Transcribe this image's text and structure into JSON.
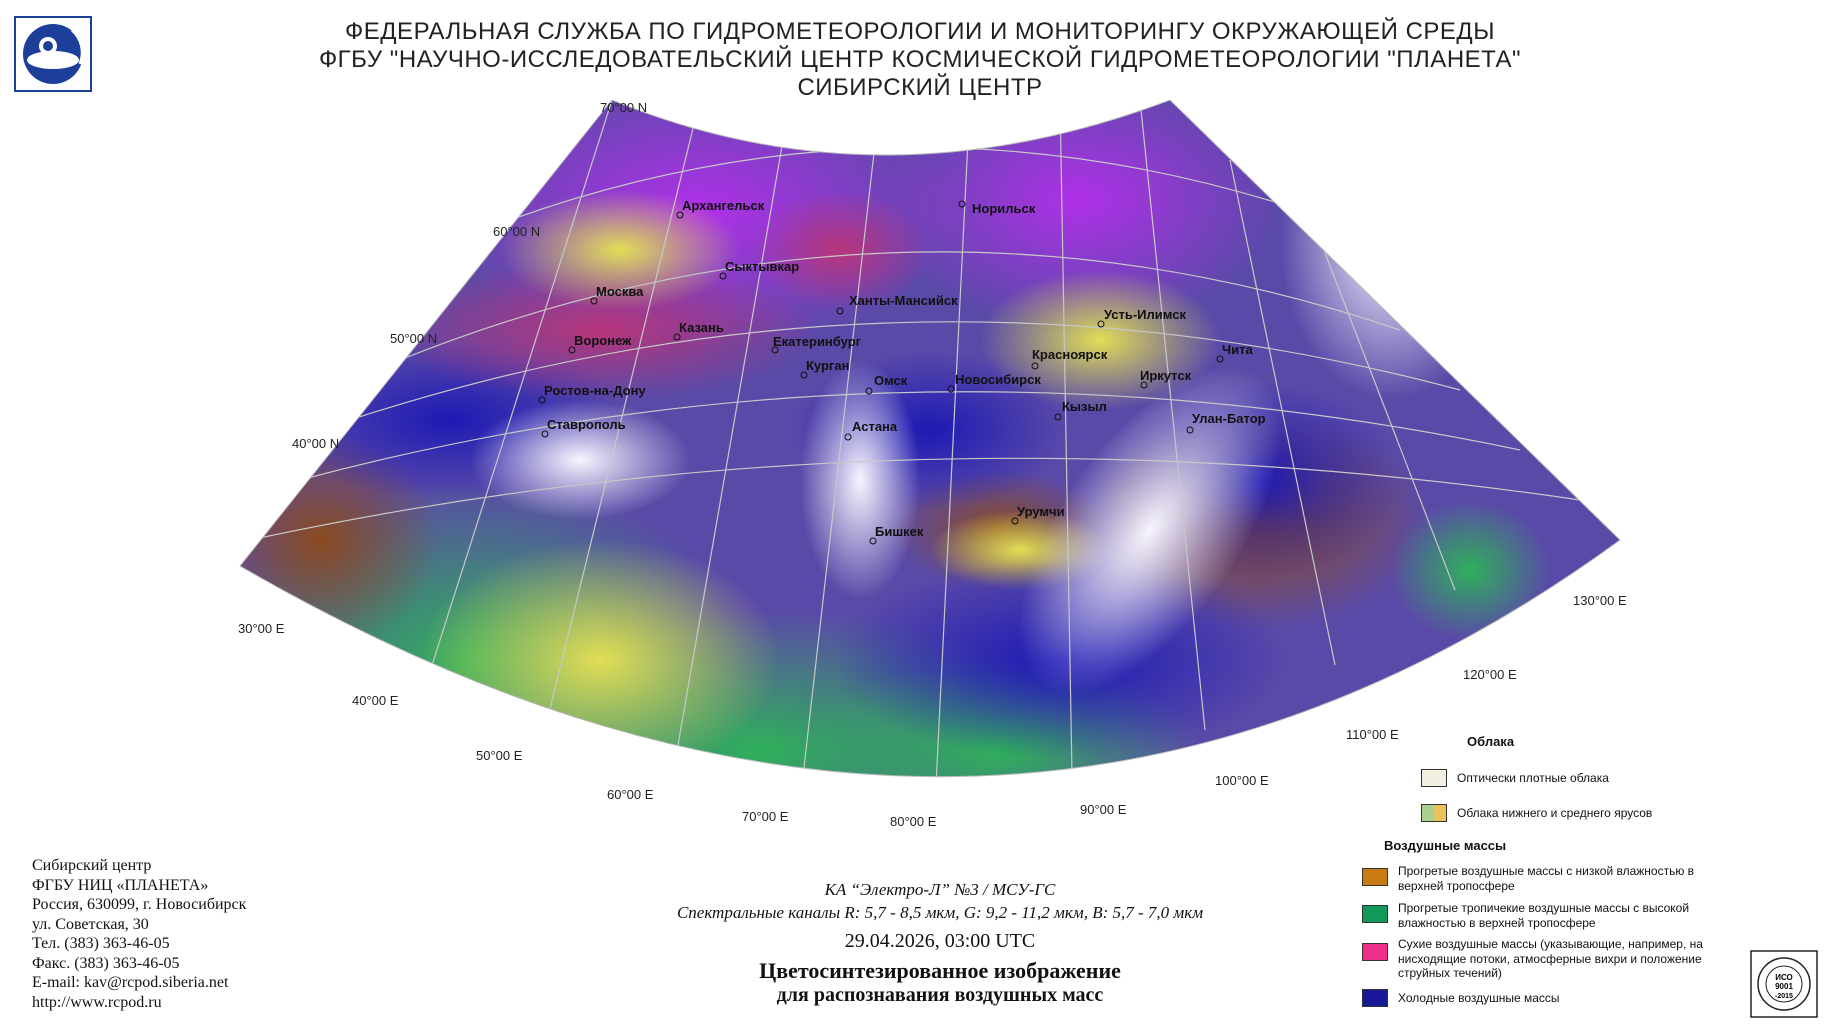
{
  "header": {
    "line1": "ФЕДЕРАЛЬНАЯ СЛУЖБА ПО ГИДРОМЕТЕОРОЛОГИИ И МОНИТОРИНГУ ОКРУЖАЮЩЕЙ СРЕДЫ",
    "line2": "ФГБУ \"НАУЧНО-ИССЛЕДОВАТЕЛЬСКИЙ ЦЕНТР КОСМИЧЕСКОЙ ГИДРОМЕТЕОРОЛОГИИ \"ПЛАНЕТА\"",
    "line3": "СИБИРСКИЙ ЦЕНТР"
  },
  "map": {
    "lat_labels": [
      "70°00 N",
      "60°00 N",
      "50°00 N",
      "40°00 N"
    ],
    "lon_labels": [
      "30°00 E",
      "40°00 E",
      "50°00 E",
      "60°00 E",
      "70°00 E",
      "80°00 E",
      "90°00 E",
      "100°00 E",
      "110°00 E",
      "120°00 E",
      "130°00 E"
    ],
    "cities": [
      "Архангельск",
      "Норильск",
      "Сыктывкар",
      "Москва",
      "Ханты-Мансийск",
      "Усть-Илимск",
      "Казань",
      "Воронеж",
      "Екатеринбург",
      "Красноярск",
      "Чита",
      "Курган",
      "Омск",
      "Новосибирск",
      "Иркутск",
      "Ростов-на-Дону",
      "Кызыл",
      "Улан-Батор",
      "Ставрополь",
      "Астана",
      "Урумчи",
      "Бишкек"
    ]
  },
  "address": {
    "lines": [
      "Сибирский центр",
      "ФГБУ НИЦ «ПЛАНЕТА»",
      "Россия, 630099, г. Новосибирск",
      "ул. Советская, 30",
      "Тел. (383) 363-46-05",
      "Факс. (383) 363-46-05",
      "E-mail: kav@rcpod.siberia.net",
      "http://www.rcpod.ru"
    ]
  },
  "caption": {
    "satellite": "КА “Электро-Л” №3 / МСУ-ГС",
    "channels": "Спектральные каналы R: 5,7 - 8,5 мкм, G: 9,2 - 11,2 мкм, B: 5,7 - 7,0 мкм",
    "datetime": "29.04.2026, 03:00 UTC",
    "title1": "Цветосинтезированное изображение",
    "title2": "для распознавания воздушных масс"
  },
  "legend": {
    "clouds_title": "Облака",
    "clouds": [
      {
        "label": "Оптически плотные облака",
        "color": "#f3f0e2"
      },
      {
        "label": "Облака нижнего и среднего ярусов",
        "colors": [
          "#a9d08e",
          "#e8c25a"
        ]
      }
    ],
    "air_title": "Воздушные массы",
    "air": [
      {
        "label": "Прогретые воздушные массы с низкой влажностью в верхней тропосфере",
        "color": "#c97a12"
      },
      {
        "label": "Прогретые тропичекие воздушные массы с высокой влажностью в верхней тропосфере",
        "color": "#0f9a5c"
      },
      {
        "label": "Сухие воздушные массы (указывающие, например, на нисходящие потоки, атмосферные вихри и положение струйных течений)",
        "color": "#ee2e8a"
      },
      {
        "label": "Холодные воздушные массы",
        "color": "#17179a"
      }
    ]
  },
  "iso": {
    "line1": "ИСО",
    "line2": "9001",
    "line3": "-2015"
  }
}
